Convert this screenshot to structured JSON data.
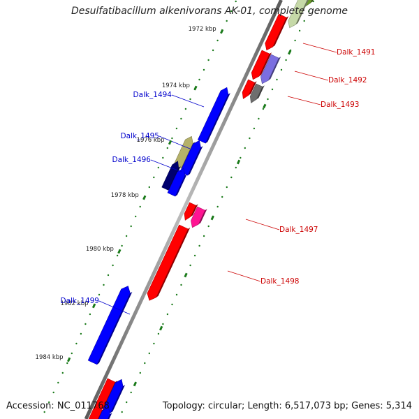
{
  "title": "Desulfatibacillum alkenivorans AK-01, complete genome",
  "footer": {
    "accession": "Accession: NC_011768",
    "summary": "Topology: circular; Length: 6,517,073 bp; Genes: 5,314"
  },
  "colors": {
    "backbone": "#8a8a8a",
    "minus_label": "#0000cc",
    "plus_label": "#cc0000",
    "tick": "#1a7a1a",
    "gene_red": "#ff0000",
    "gene_blue": "#0000ff",
    "gene_navy": "#00006e",
    "gene_pink": "#ff1493",
    "gene_olive": "#b5b16a",
    "gene_grey": "#6e6e6e",
    "gene_lavender": "#7b6ee0",
    "gene_green": "#6c9b2a",
    "gene_palegreen": "#c6d9a8"
  },
  "ticks": [
    {
      "label": "1972 kbp"
    },
    {
      "label": "1974 kbp"
    },
    {
      "label": "1976 kbp"
    },
    {
      "label": "1978 kbp"
    },
    {
      "label": "1980 kbp"
    },
    {
      "label": "1982 kbp"
    },
    {
      "label": "1984 kbp"
    }
  ],
  "gene_labels": [
    {
      "label": "Dalk_1491",
      "strand": "plus"
    },
    {
      "label": "Dalk_1492",
      "strand": "plus"
    },
    {
      "label": "Dalk_1493",
      "strand": "plus"
    },
    {
      "label": "Dalk_1494",
      "strand": "minus"
    },
    {
      "label": "Dalk_1495",
      "strand": "minus"
    },
    {
      "label": "Dalk_1496",
      "strand": "minus"
    },
    {
      "label": "Dalk_1497",
      "strand": "plus"
    },
    {
      "label": "Dalk_1498",
      "strand": "plus"
    },
    {
      "label": "Dalk_1499",
      "strand": "minus"
    }
  ]
}
